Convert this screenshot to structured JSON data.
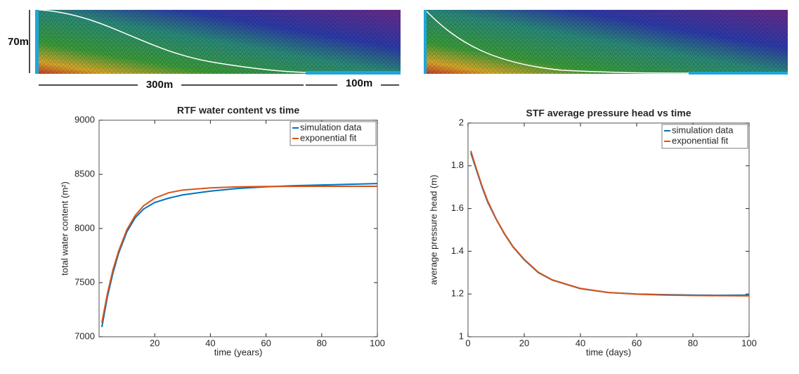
{
  "diagram": {
    "height_label": "70m",
    "left_length_label": "300m",
    "right_length_label": "100m"
  },
  "chart_data": [
    {
      "type": "line",
      "title": "RTF water content vs time",
      "xlabel": "time (years)",
      "ylabel": "total water content (m²)",
      "x": [
        1,
        3,
        5,
        7,
        10,
        13,
        16,
        20,
        25,
        30,
        40,
        50,
        60,
        70,
        80,
        90,
        100
      ],
      "series": [
        {
          "name": "simulation data",
          "color": "#0072bd",
          "values": [
            7090,
            7370,
            7590,
            7770,
            7970,
            8100,
            8180,
            8240,
            8280,
            8310,
            8345,
            8370,
            8385,
            8395,
            8402,
            8408,
            8415
          ]
        },
        {
          "name": "exponential fit",
          "color": "#d95319",
          "values": [
            7130,
            7400,
            7620,
            7790,
            7990,
            8120,
            8210,
            8280,
            8330,
            8355,
            8375,
            8385,
            8388,
            8389,
            8390,
            8390,
            8390
          ]
        }
      ],
      "xlim": [
        0,
        100
      ],
      "xticks": [
        20,
        40,
        60,
        80,
        100
      ],
      "ylim": [
        7000,
        9000
      ],
      "yticks": [
        7000,
        7500,
        8000,
        8500,
        9000
      ],
      "legend": "upper right"
    },
    {
      "type": "line",
      "title": "STF average pressure head vs time",
      "xlabel": "time (days)",
      "ylabel": "average pressure head (m)",
      "x": [
        1,
        3,
        5,
        7,
        10,
        13,
        16,
        20,
        25,
        30,
        40,
        50,
        60,
        70,
        80,
        90,
        100
      ],
      "series": [
        {
          "name": "simulation data",
          "color": "#0072bd",
          "values": [
            1.86,
            1.78,
            1.7,
            1.63,
            1.55,
            1.48,
            1.42,
            1.36,
            1.3,
            1.265,
            1.225,
            1.207,
            1.2,
            1.197,
            1.195,
            1.194,
            1.195
          ]
        },
        {
          "name": "exponential fit",
          "color": "#d95319",
          "values": [
            1.87,
            1.785,
            1.705,
            1.635,
            1.552,
            1.482,
            1.422,
            1.362,
            1.302,
            1.266,
            1.226,
            1.207,
            1.199,
            1.195,
            1.193,
            1.192,
            1.191
          ]
        }
      ],
      "xlim": [
        0,
        100
      ],
      "xticks": [
        0,
        20,
        40,
        60,
        80,
        100
      ],
      "ylim": [
        1,
        2
      ],
      "yticks": [
        1,
        1.2,
        1.4,
        1.6,
        1.8,
        2
      ],
      "legend": "upper right"
    }
  ]
}
